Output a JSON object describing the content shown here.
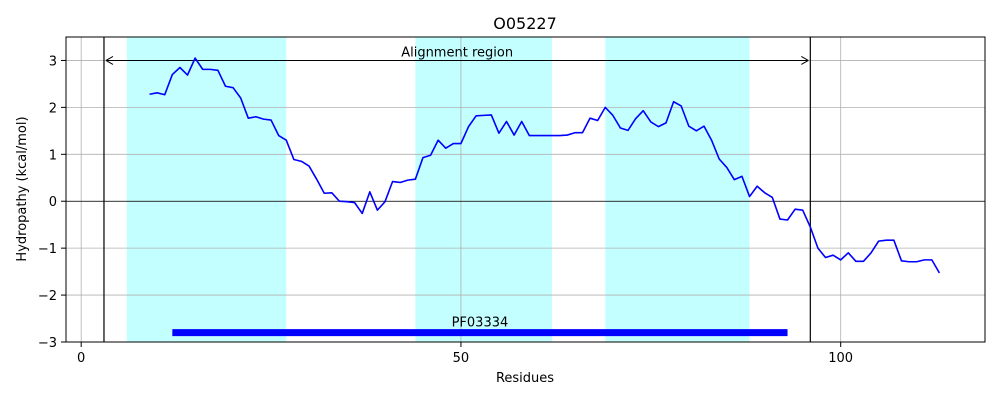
{
  "chart_data": {
    "type": "line",
    "title": "O05227",
    "xlabel": "Residues",
    "ylabel": "Hydropathy (kcal/mol)",
    "xlim": [
      -2,
      119
    ],
    "ylim": [
      -3,
      3.5
    ],
    "xticks": [
      0,
      50,
      100
    ],
    "yticks": [
      -3,
      -2,
      -1,
      0,
      1,
      2,
      3
    ],
    "grid": true,
    "colors": {
      "line": "#0000ff",
      "band": "#c4ffff",
      "domain_bar": "#0000ff"
    },
    "series": [
      {
        "x": [
          9,
          10,
          11,
          12,
          13,
          14,
          15,
          16,
          17,
          18,
          19,
          20,
          21,
          22,
          23,
          24,
          25,
          26,
          27,
          28,
          29,
          30,
          31,
          32,
          33,
          34,
          35,
          36,
          37,
          38,
          39,
          40,
          41,
          42,
          43,
          44,
          45,
          46,
          47,
          48,
          49,
          50,
          51,
          52,
          53,
          54,
          55,
          56,
          57,
          58,
          59,
          60,
          61,
          62,
          63,
          64,
          65,
          66,
          67,
          68,
          69,
          70,
          71,
          72,
          73,
          74,
          75,
          76,
          77,
          78,
          79,
          80,
          81,
          82,
          83,
          84,
          85,
          86,
          87,
          88,
          89,
          90,
          91,
          92,
          93,
          94,
          95,
          96,
          97,
          98,
          99,
          100,
          101,
          102,
          103,
          104,
          105,
          106,
          107,
          108,
          109,
          110,
          111,
          112,
          113
        ],
        "values": [
          2.28,
          2.31,
          2.27,
          2.7,
          2.85,
          2.69,
          3.05,
          2.81,
          2.81,
          2.79,
          2.45,
          2.42,
          2.2,
          1.77,
          1.8,
          1.75,
          1.73,
          1.4,
          1.3,
          0.89,
          0.85,
          0.75,
          0.47,
          0.17,
          0.18,
          0.0,
          -0.01,
          -0.03,
          -0.26,
          0.2,
          -0.19,
          -0.01,
          0.42,
          0.4,
          0.45,
          0.47,
          0.93,
          0.98,
          1.3,
          1.13,
          1.23,
          1.23,
          1.59,
          1.82,
          1.83,
          1.84,
          1.45,
          1.7,
          1.41,
          1.7,
          1.4,
          1.4,
          1.4,
          1.4,
          1.4,
          1.41,
          1.46,
          1.46,
          1.77,
          1.72,
          2.0,
          1.83,
          1.56,
          1.51,
          1.76,
          1.93,
          1.69,
          1.59,
          1.67,
          2.12,
          2.03,
          1.6,
          1.5,
          1.6,
          1.3,
          0.9,
          0.72,
          0.46,
          0.53,
          0.1,
          0.32,
          0.18,
          0.08,
          -0.38,
          -0.4,
          -0.17,
          -0.19,
          -0.55,
          -1.0,
          -1.2,
          -1.15,
          -1.25,
          -1.1,
          -1.28,
          -1.28,
          -1.1,
          -0.85,
          -0.83,
          -0.83,
          -1.27,
          -1.29,
          -1.29,
          -1.25,
          -1.25,
          -1.53
        ]
      }
    ],
    "bands": [
      [
        6,
        27
      ],
      [
        44,
        62
      ],
      [
        69,
        88
      ]
    ],
    "region_lines": [
      3,
      96
    ],
    "annotation": {
      "label": "Alignment region",
      "x_start": 3,
      "x_end": 96,
      "y": 3
    },
    "domain": {
      "label": "PF03334",
      "x_start": 12,
      "x_end": 93,
      "y": -2.8
    }
  }
}
